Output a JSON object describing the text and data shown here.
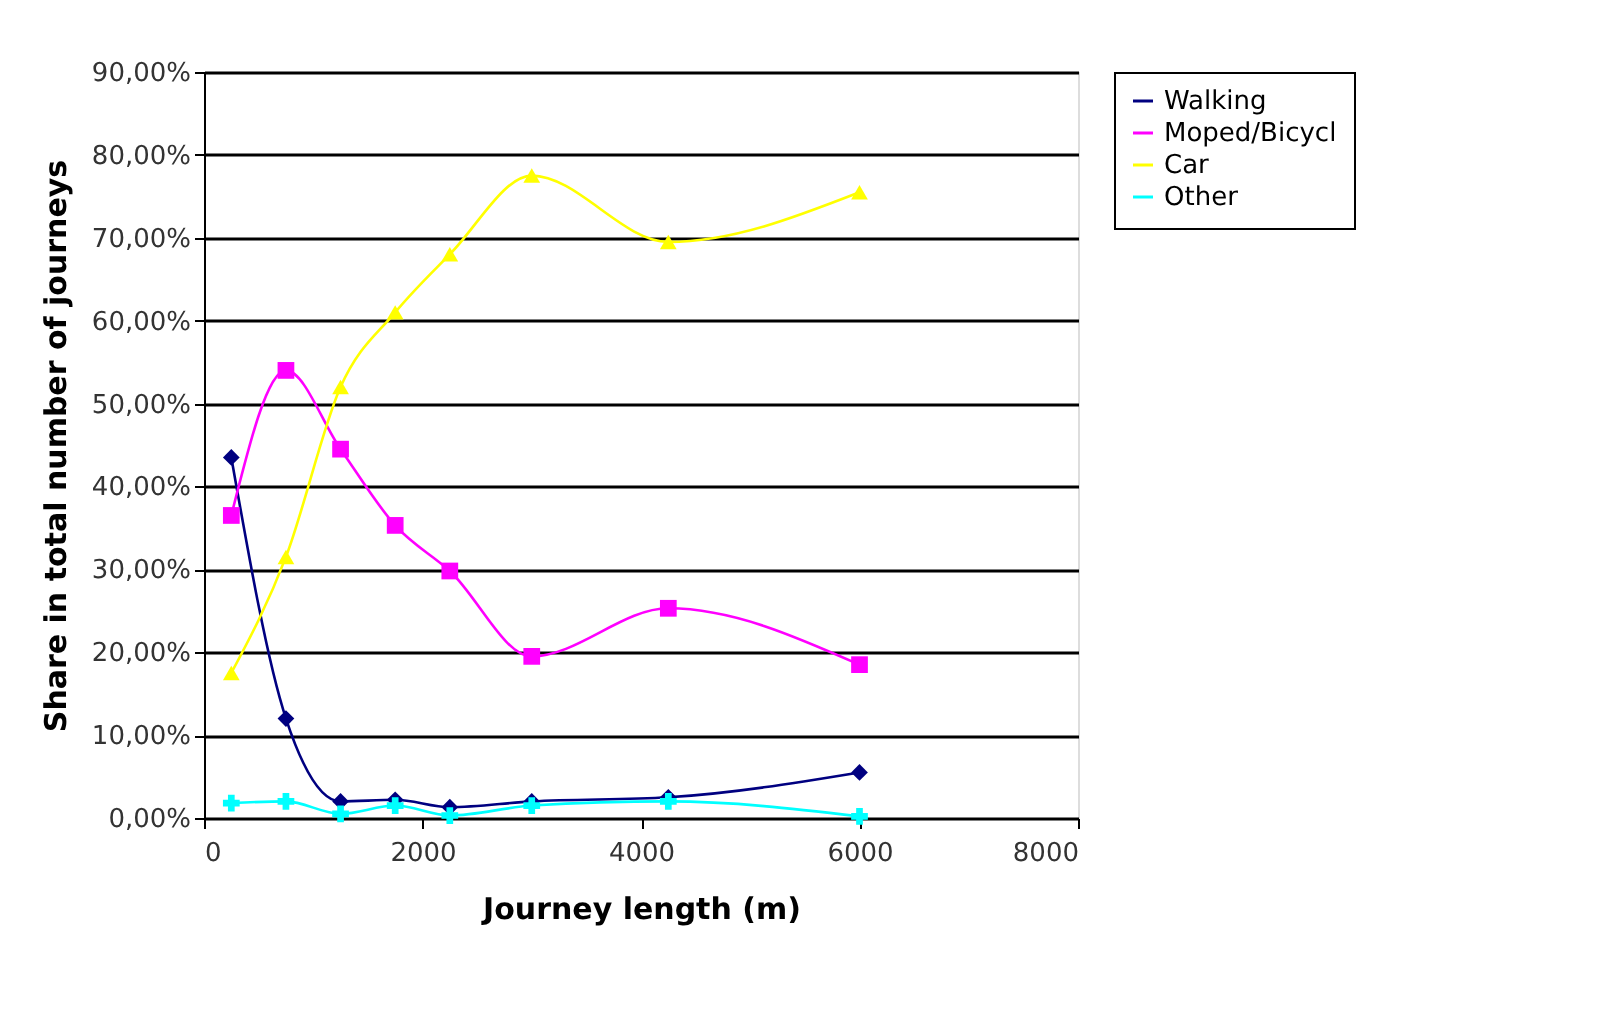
{
  "chart_data": {
    "type": "line",
    "xlabel": "Journey length (m)",
    "ylabel": "Share in total number of journeys",
    "x": [
      250,
      750,
      1250,
      1750,
      2250,
      3000,
      4250,
      6000
    ],
    "series": [
      {
        "name": "Walking",
        "color": "#000080",
        "marker": "diamond",
        "values": [
          43.5,
          12,
          2,
          2.2,
          1.3,
          2,
          2.5,
          5.5
        ]
      },
      {
        "name": "Moped/Bicycl",
        "color": "#ff00ff",
        "marker": "square",
        "values": [
          36.5,
          54,
          44.5,
          35.3,
          29.8,
          19.5,
          25.3,
          18.5
        ]
      },
      {
        "name": "Car",
        "color": "#ffff00",
        "marker": "triangle",
        "values": [
          17.5,
          31.5,
          52,
          61,
          68,
          77.5,
          69.5,
          75.5
        ]
      },
      {
        "name": "Other",
        "color": "#00ffff",
        "marker": "cross",
        "values": [
          1.8,
          2,
          0.5,
          1.5,
          0.3,
          1.5,
          2,
          0.2
        ]
      }
    ],
    "xlim": [
      0,
      8000
    ],
    "xticks": [
      0,
      2000,
      4000,
      6000,
      8000
    ],
    "ylim": [
      0,
      90
    ],
    "yticks": [
      {
        "value": 0,
        "label": "0,00%"
      },
      {
        "value": 10,
        "label": "10,00%"
      },
      {
        "value": 20,
        "label": "20,00%"
      },
      {
        "value": 30,
        "label": "30,00%"
      },
      {
        "value": 40,
        "label": "40,00%"
      },
      {
        "value": 50,
        "label": "50,00%"
      },
      {
        "value": 60,
        "label": "60,00%"
      },
      {
        "value": 70,
        "label": "70,00%"
      },
      {
        "value": 80,
        "label": "80,00%"
      },
      {
        "value": 90,
        "label": "90,00%"
      }
    ],
    "grid": "y",
    "legend": "right",
    "line_style": "solid"
  }
}
